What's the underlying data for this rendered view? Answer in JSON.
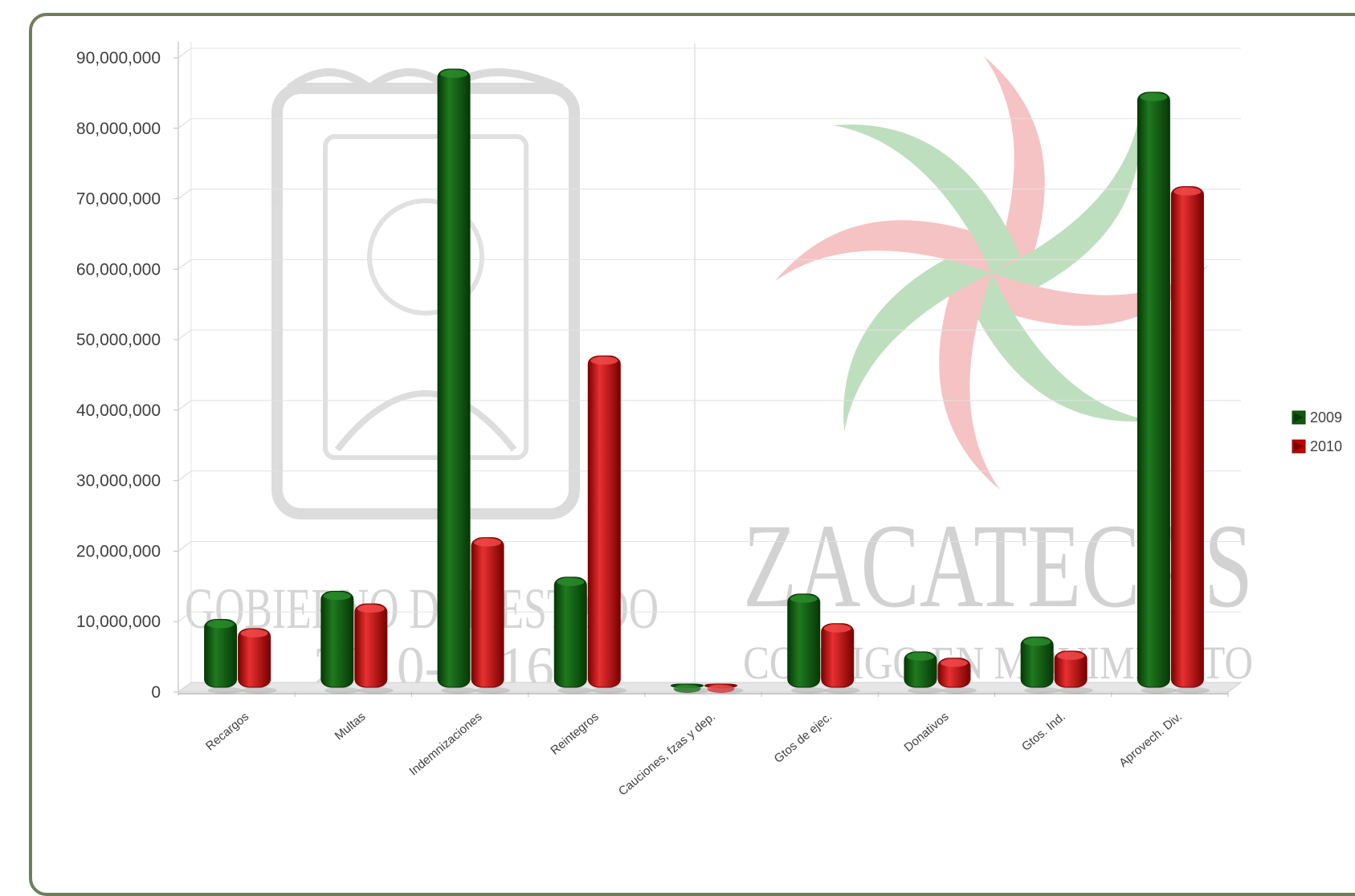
{
  "chart_data": {
    "type": "bar",
    "categories": [
      "Recargos",
      "Multas",
      "Indemnizaciones",
      "Reintegros",
      "Cauciones, fzas y dep.",
      "Gtos de ejec.",
      "Donativos",
      "Gtos. Ind.",
      "Aprovech. Div."
    ],
    "series": [
      {
        "name": "2009",
        "color": "#0e5a10",
        "values": [
          9400000,
          13400000,
          87500000,
          15400000,
          200000,
          13000000,
          4800000,
          6900000,
          84200000
        ]
      },
      {
        "name": "2010",
        "color": "#c40000",
        "values": [
          8100000,
          11600000,
          21000000,
          46800000,
          200000,
          8800000,
          3900000,
          4900000,
          70800000
        ]
      }
    ],
    "ylim": [
      0,
      90000000
    ],
    "yticks": [
      0,
      10000000,
      20000000,
      30000000,
      40000000,
      50000000,
      60000000,
      70000000,
      80000000,
      90000000
    ],
    "ytick_labels": [
      "0",
      "10,000,000",
      "20,000,000",
      "30,000,000",
      "40,000,000",
      "50,000,000",
      "60,000,000",
      "70,000,000",
      "80,000,000",
      "90,000,000"
    ],
    "grid": true,
    "legend_position": "right",
    "title": "",
    "xlabel": "",
    "ylabel": ""
  },
  "watermark": {
    "left_text_line1": "GOBIERNO DEL ESTADO",
    "left_text_line2": "2010-2016",
    "right_text_line1": "ZACATECAS",
    "right_text_line2": "CONTIGO EN MOVIMIENTO"
  }
}
